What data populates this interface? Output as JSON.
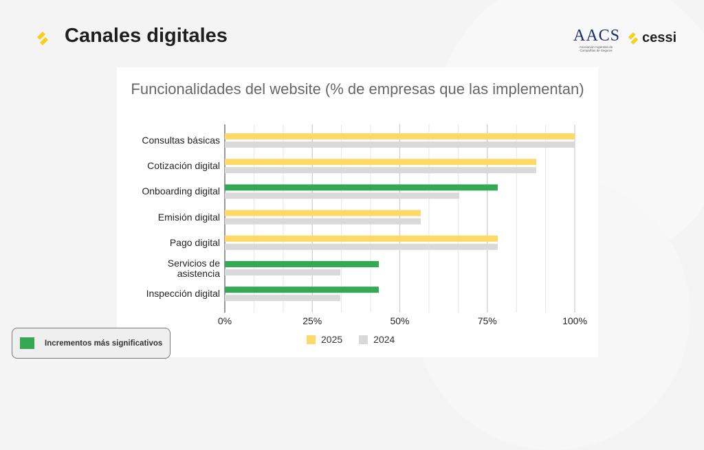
{
  "page": {
    "title": "Canales digitales",
    "logos": {
      "aacs": "AACS",
      "aacs_sub": "Asociación Argentina de Compañías de Seguros",
      "cessi": "cessi"
    }
  },
  "colors": {
    "y2025": "#fdd967",
    "y2024": "#d9d9d9",
    "highlight": "#34a853",
    "accent": "#f5d020"
  },
  "note": {
    "label": "Incrementos más significativos"
  },
  "chart_data": {
    "type": "bar",
    "orientation": "horizontal",
    "title": "Funcionalidades del website (% de empresas que las implementan)",
    "categories": [
      "Consultas básicas",
      "Cotización digital",
      "Onboarding digital",
      "Emisión digital",
      "Pago digital",
      "Servicios de asistencia",
      "Inspección digital"
    ],
    "series": [
      {
        "name": "2025",
        "values": [
          100,
          89,
          78,
          56,
          78,
          44,
          44
        ]
      },
      {
        "name": "2024",
        "values": [
          100,
          89,
          67,
          56,
          78,
          33,
          33
        ]
      }
    ],
    "highlighted_2025": [
      false,
      false,
      true,
      false,
      false,
      true,
      true
    ],
    "xlim": [
      0,
      100
    ],
    "xticks": [
      "0%",
      "25%",
      "50%",
      "75%",
      "100%"
    ],
    "grid": true,
    "legend": "bottom"
  }
}
